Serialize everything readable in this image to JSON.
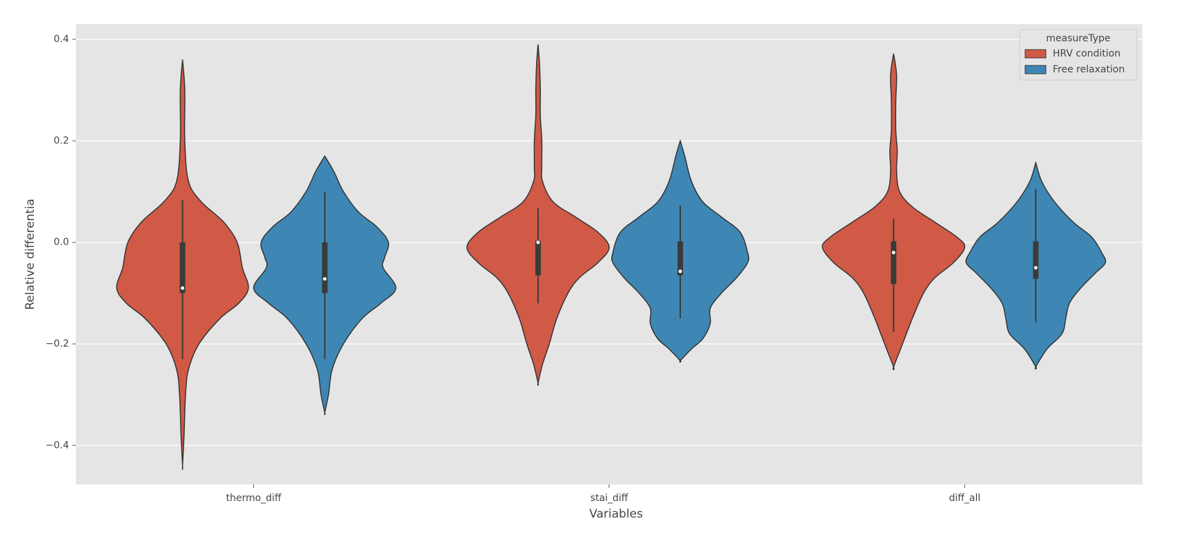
{
  "chart_data": {
    "type": "violin",
    "xlabel": "Variables",
    "ylabel": "Relative differentia",
    "categories": [
      "thermo_diff",
      "stai_diff",
      "diff_all"
    ],
    "ylim": [
      -0.477,
      0.43
    ],
    "yticks": [
      {
        "value": -0.4,
        "label": "−0.4"
      },
      {
        "value": -0.2,
        "label": "−0.2"
      },
      {
        "value": 0,
        "label": "0.0"
      },
      0.2,
      0.4
    ],
    "grid": true,
    "legend_title": "measureType",
    "legend_position": "upper right",
    "series": [
      {
        "name": "HRV condition",
        "color": "#d05a46",
        "violins": [
          {
            "y": [
              0.36,
              0.3,
              0.2,
              0.12,
              0.08,
              0.04,
              0.0,
              -0.05,
              -0.09,
              -0.12,
              -0.15,
              -0.2,
              -0.25,
              -0.3,
              -0.38,
              -0.44
            ],
            "density": [
              0,
              3,
              3,
              8,
              25,
              55,
              73,
              80,
              88,
              75,
              50,
              22,
              8,
              4,
              2,
              0
            ],
            "whisker_low": -0.23,
            "q1": -0.1,
            "median": -0.09,
            "q3": 0.0,
            "whisker_high": 0.083
          },
          {
            "y": [
              0.39,
              0.35,
              0.3,
              0.25,
              0.2,
              0.15,
              0.12,
              0.08,
              0.05,
              0.02,
              -0.01,
              -0.04,
              -0.07,
              -0.1,
              -0.15,
              -0.2,
              -0.24,
              -0.277
            ],
            "density": [
              0,
              2,
              3,
              3,
              5,
              5,
              6,
              20,
              50,
              80,
              95,
              80,
              55,
              40,
              25,
              15,
              6,
              0
            ],
            "whisker_low": -0.12,
            "q1": -0.065,
            "median": 0.0,
            "q3": 0.003,
            "whisker_high": 0.067
          },
          {
            "y": [
              0.372,
              0.33,
              0.28,
              0.22,
              0.18,
              0.14,
              0.1,
              0.07,
              0.04,
              0.01,
              -0.01,
              -0.04,
              -0.07,
              -0.1,
              -0.15,
              -0.2,
              -0.245
            ],
            "density": [
              0,
              4,
              3,
              3,
              5,
              4,
              8,
              25,
              55,
              85,
              95,
              80,
              55,
              40,
              25,
              12,
              0
            ],
            "whisker_low": -0.177,
            "q1": -0.082,
            "median": -0.02,
            "q3": 0.002,
            "whisker_high": 0.047
          }
        ]
      },
      {
        "name": "Free relaxation",
        "color": "#3e87b4",
        "violins": [
          {
            "y": [
              0.17,
              0.14,
              0.1,
              0.06,
              0.03,
              0.0,
              -0.03,
              -0.05,
              -0.09,
              -0.12,
              -0.15,
              -0.2,
              -0.25,
              -0.3,
              -0.335
            ],
            "density": [
              0,
              12,
              25,
              45,
              70,
              85,
              80,
              78,
              95,
              75,
              50,
              25,
              10,
              5,
              0
            ],
            "whisker_low": -0.23,
            "q1": -0.1,
            "median": -0.072,
            "q3": 0.0,
            "whisker_high": 0.1
          },
          {
            "y": [
              0.2,
              0.17,
              0.12,
              0.08,
              0.05,
              0.02,
              -0.02,
              -0.04,
              -0.07,
              -0.1,
              -0.13,
              -0.16,
              -0.19,
              -0.21,
              -0.233
            ],
            "density": [
              0,
              6,
              15,
              30,
              55,
              80,
              90,
              90,
              75,
              55,
              40,
              40,
              30,
              15,
              0
            ],
            "whisker_low": -0.15,
            "q1": -0.065,
            "median": -0.057,
            "q3": 0.002,
            "whisker_high": 0.072
          },
          {
            "y": [
              0.157,
              0.12,
              0.08,
              0.04,
              0.01,
              -0.02,
              -0.04,
              -0.06,
              -0.09,
              -0.12,
              -0.15,
              -0.18,
              -0.21,
              -0.245
            ],
            "density": [
              0,
              8,
              25,
              50,
              75,
              88,
              93,
              80,
              60,
              45,
              40,
              35,
              15,
              0
            ],
            "whisker_low": -0.157,
            "q1": -0.072,
            "median": -0.05,
            "q3": 0.002,
            "whisker_high": 0.105
          }
        ]
      }
    ]
  }
}
